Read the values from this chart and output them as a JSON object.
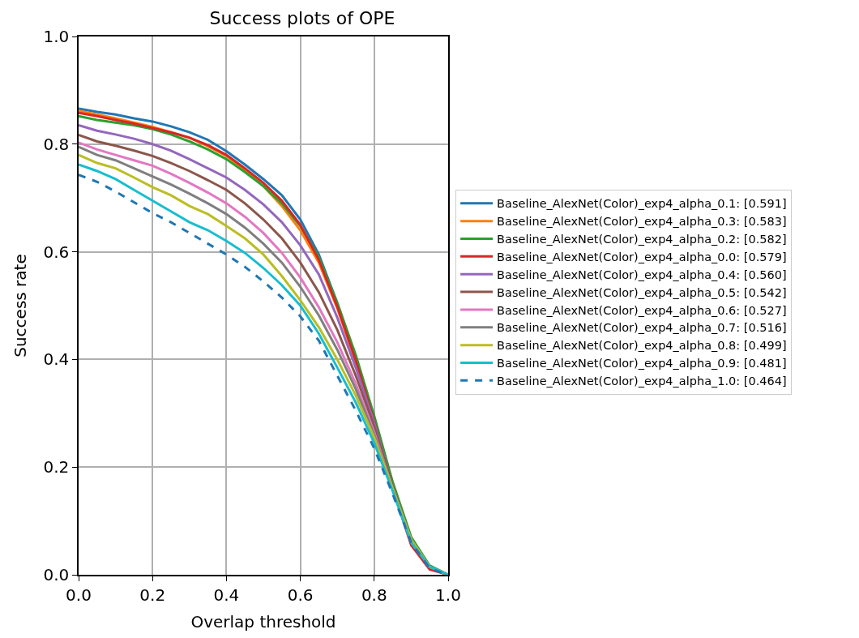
{
  "chart_data": {
    "type": "line",
    "title": "Success plots of OPE",
    "xlabel": "Overlap threshold",
    "ylabel": "Success rate",
    "x": [
      0,
      0.05,
      0.1,
      0.15,
      0.2,
      0.25,
      0.3,
      0.35,
      0.4,
      0.45,
      0.5,
      0.55,
      0.6,
      0.65,
      0.7,
      0.75,
      0.8,
      0.85,
      0.9,
      0.95,
      1.0
    ],
    "xlim": [
      0,
      1
    ],
    "ylim": [
      0,
      1
    ],
    "xticks": [
      {
        "value": 0,
        "label": "0.0"
      },
      {
        "value": 0.2,
        "label": "0.2"
      },
      {
        "value": 0.4,
        "label": "0.4"
      },
      {
        "value": 0.6,
        "label": "0.6"
      },
      {
        "value": 0.8,
        "label": "0.8"
      },
      {
        "value": 1,
        "label": "1.0"
      }
    ],
    "yticks": [
      {
        "value": 0,
        "label": "0.0"
      },
      {
        "value": 0.2,
        "label": "0.2"
      },
      {
        "value": 0.4,
        "label": "0.4"
      },
      {
        "value": 0.6,
        "label": "0.6"
      },
      {
        "value": 0.8,
        "label": "0.8"
      },
      {
        "value": 1,
        "label": "1.0"
      }
    ],
    "grid": true,
    "legend": "right",
    "marker": "none",
    "series": [
      {
        "name": "Baseline_AlexNet(Color)_exp4_alpha_0.1: [0.591]",
        "color": "#1f77b4",
        "line_style": "solid",
        "values": [
          0.866,
          0.86,
          0.855,
          0.848,
          0.842,
          0.833,
          0.822,
          0.808,
          0.787,
          0.762,
          0.735,
          0.705,
          0.66,
          0.595,
          0.505,
          0.405,
          0.29,
          0.17,
          0.065,
          0.015,
          0
        ]
      },
      {
        "name": "Baseline_AlexNet(Color)_exp4_alpha_0.3: [0.583]",
        "color": "#ff7f0e",
        "line_style": "solid",
        "values": [
          0.862,
          0.855,
          0.848,
          0.84,
          0.832,
          0.822,
          0.812,
          0.796,
          0.778,
          0.752,
          0.722,
          0.685,
          0.64,
          0.58,
          0.495,
          0.395,
          0.285,
          null,
          null,
          null,
          null
        ]
      },
      {
        "name": "Baseline_AlexNet(Color)_exp4_alpha_0.2: [0.582]",
        "color": "#2ca02c",
        "line_style": "solid",
        "values": [
          0.852,
          0.845,
          0.84,
          0.835,
          0.828,
          0.818,
          0.805,
          0.79,
          0.772,
          0.748,
          0.722,
          0.69,
          0.648,
          0.59,
          0.505,
          0.408,
          0.295,
          0.172,
          0.07,
          0.017,
          0
        ]
      },
      {
        "name": "Baseline_AlexNet(Color)_exp4_alpha_0.0: [0.579]",
        "color": "#d62728",
        "line_style": "solid",
        "values": [
          0.858,
          0.852,
          0.845,
          0.838,
          0.83,
          0.822,
          0.812,
          0.798,
          0.78,
          0.755,
          0.728,
          0.695,
          0.65,
          0.585,
          0.498,
          0.398,
          0.285,
          0.16,
          0.055,
          0.01,
          0
        ]
      },
      {
        "name": "Baseline_AlexNet(Color)_exp4_alpha_0.4: [0.560]",
        "color": "#9467bd",
        "line_style": "solid",
        "values": [
          0.835,
          0.825,
          0.818,
          0.81,
          0.8,
          0.788,
          0.772,
          0.755,
          0.738,
          0.715,
          0.688,
          0.655,
          0.612,
          0.558,
          0.478,
          0.385,
          0.282,
          0.165,
          0.065,
          null,
          null
        ]
      },
      {
        "name": "Baseline_AlexNet(Color)_exp4_alpha_0.5: [0.542]",
        "color": "#8c564b",
        "line_style": "solid",
        "values": [
          0.817,
          0.805,
          0.797,
          0.788,
          0.778,
          0.765,
          0.75,
          0.733,
          0.715,
          0.69,
          0.66,
          0.625,
          0.58,
          0.525,
          0.455,
          0.37,
          0.275,
          0.165,
          0.065,
          0.015,
          0
        ]
      },
      {
        "name": "Baseline_AlexNet(Color)_exp4_alpha_0.6: [0.527]",
        "color": "#e377c2",
        "line_style": "solid",
        "values": [
          0.803,
          0.79,
          0.78,
          0.77,
          0.76,
          0.745,
          0.728,
          0.71,
          0.69,
          0.665,
          0.635,
          0.598,
          0.552,
          0.497,
          0.432,
          0.355,
          0.265,
          0.16,
          0.065,
          0.015,
          0
        ]
      },
      {
        "name": "Baseline_AlexNet(Color)_exp4_alpha_0.7: [0.516]",
        "color": "#7f7f7f",
        "line_style": "solid",
        "values": [
          0.795,
          0.78,
          0.77,
          0.755,
          0.74,
          0.725,
          0.708,
          0.69,
          0.67,
          0.645,
          0.615,
          0.58,
          0.535,
          0.482,
          0.418,
          0.345,
          0.26,
          0.16,
          0.065,
          0.015,
          0
        ]
      },
      {
        "name": "Baseline_AlexNet(Color)_exp4_alpha_0.8: [0.499]",
        "color": "#bcbd22",
        "line_style": "solid",
        "values": [
          0.78,
          0.765,
          0.755,
          0.738,
          0.72,
          0.705,
          0.685,
          0.67,
          0.648,
          0.625,
          0.595,
          0.555,
          0.51,
          0.46,
          0.4,
          0.333,
          0.255,
          0.16,
          0.065,
          0.015,
          0
        ]
      },
      {
        "name": "Baseline_AlexNet(Color)_exp4_alpha_0.9: [0.481]",
        "color": "#17becf",
        "line_style": "solid",
        "values": [
          0.762,
          0.75,
          0.735,
          0.715,
          0.695,
          0.675,
          0.655,
          0.64,
          0.62,
          0.598,
          0.57,
          0.538,
          0.5,
          0.448,
          0.385,
          0.32,
          0.245,
          0.155,
          0.06,
          0.015,
          0
        ]
      },
      {
        "name": "Baseline_AlexNet(Color)_exp4_alpha_1.0: [0.464]",
        "color": "#1f77b4",
        "line_style": "dashed",
        "values": [
          0.743,
          0.73,
          0.712,
          0.692,
          0.672,
          0.655,
          0.635,
          0.615,
          0.595,
          0.572,
          0.545,
          0.515,
          0.48,
          0.435,
          0.37,
          0.305,
          0.235,
          0.15,
          0.06,
          0.012,
          0
        ]
      }
    ]
  }
}
